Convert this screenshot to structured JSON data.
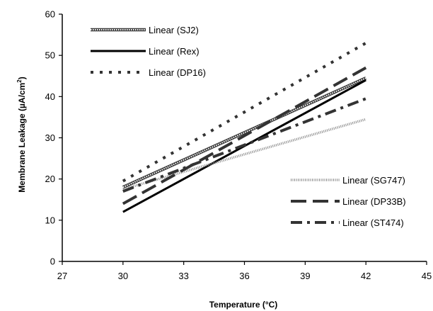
{
  "chart_data": {
    "type": "line",
    "title": "",
    "xlabel": "Temperature (°C)",
    "ylabel_main": "Membrane Leakage (µA/cm",
    "ylabel_sup": "2",
    "ylabel_end": ")",
    "xlim": [
      27,
      45
    ],
    "ylim": [
      0,
      60
    ],
    "xticks": [
      27,
      30,
      33,
      36,
      39,
      42,
      45
    ],
    "yticks": [
      0,
      10,
      20,
      30,
      40,
      50,
      60
    ],
    "x": [
      30,
      42
    ],
    "grid": false,
    "series": [
      {
        "name": "Linear (SJ2)",
        "values": [
          18,
          44.5
        ],
        "color": "#555555",
        "style": "sj2",
        "legend_group": "top"
      },
      {
        "name": "Linear (Rex)",
        "values": [
          12,
          44
        ],
        "color": "#000000",
        "style": "solid",
        "legend_group": "top"
      },
      {
        "name": "Linear (DP16)",
        "values": [
          19.5,
          53
        ],
        "color": "#333333",
        "style": "dotted",
        "legend_group": "top"
      },
      {
        "name": "Linear (SG747)",
        "values": [
          17.5,
          34.5
        ],
        "color": "#777777",
        "style": "thin-dotted",
        "legend_group": "bottom"
      },
      {
        "name": "Linear (DP33B)",
        "values": [
          14,
          47
        ],
        "color": "#333333",
        "style": "longdash",
        "legend_group": "bottom"
      },
      {
        "name": "Linear (ST474)",
        "values": [
          17,
          39.5
        ],
        "color": "#333333",
        "style": "dashdot",
        "legend_group": "bottom"
      }
    ]
  }
}
